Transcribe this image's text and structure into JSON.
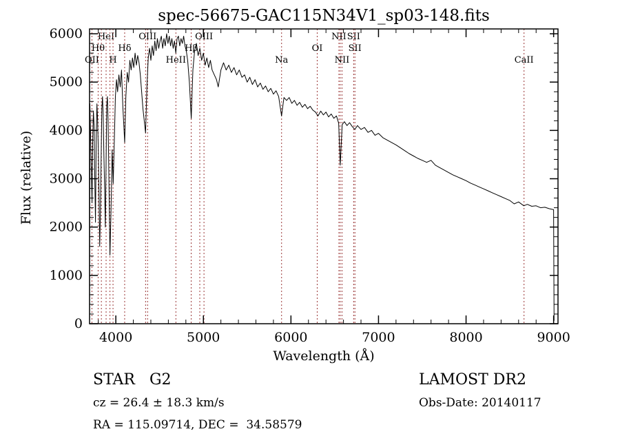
{
  "title": "spec-56675-GAC115N34V1_sp03-148.fits",
  "chart_data": {
    "type": "line",
    "xlabel": "Wavelength (Å)",
    "ylabel": "Flux (relative)",
    "xlim": [
      3700,
      9050
    ],
    "ylim": [
      0,
      6100
    ],
    "xticks": [
      4000,
      5000,
      6000,
      7000,
      8000,
      9000
    ],
    "yticks": [
      0,
      1000,
      2000,
      3000,
      4000,
      5000,
      6000
    ],
    "x_minor_step": 200,
    "y_minor_step": 200,
    "grid": false,
    "legend": "none",
    "line_color": "#000000",
    "marker_color": "#993333",
    "line_markers": [
      {
        "label": "OII",
        "wavelength": 3727,
        "row": 3
      },
      {
        "label": "Hθ",
        "wavelength": 3798,
        "row": 2
      },
      {
        "label": "",
        "wavelength": 3835,
        "row": 0
      },
      {
        "label": "HeI",
        "wavelength": 3889,
        "row": 1
      },
      {
        "label": "",
        "wavelength": 3933,
        "row": 0
      },
      {
        "label": "H",
        "wavelength": 3968,
        "row": 3
      },
      {
        "label": "Hδ",
        "wavelength": 4101,
        "row": 2
      },
      {
        "label": "",
        "wavelength": 4340,
        "row": 0
      },
      {
        "label": "OIII",
        "wavelength": 4363,
        "row": 1
      },
      {
        "label": "HeII",
        "wavelength": 4686,
        "row": 3
      },
      {
        "label": "Hβ",
        "wavelength": 4861,
        "row": 2
      },
      {
        "label": "",
        "wavelength": 4959,
        "row": 0
      },
      {
        "label": "OIII",
        "wavelength": 5007,
        "row": 1
      },
      {
        "label": "Na",
        "wavelength": 5893,
        "row": 3
      },
      {
        "label": "OI",
        "wavelength": 6300,
        "row": 2
      },
      {
        "label": "NII",
        "wavelength": 6548,
        "row": 1
      },
      {
        "label": "",
        "wavelength": 6563,
        "row": 0
      },
      {
        "label": "NII",
        "wavelength": 6583,
        "row": 3
      },
      {
        "label": "SII",
        "wavelength": 6716,
        "row": 1
      },
      {
        "label": "SII",
        "wavelength": 6731,
        "row": 2
      },
      {
        "label": "CaII",
        "wavelength": 8662,
        "row": 3
      }
    ],
    "series": [
      {
        "name": "spectrum",
        "points": [
          [
            3700,
            80
          ],
          [
            3704,
            4550
          ],
          [
            3712,
            3900
          ],
          [
            3720,
            3200
          ],
          [
            3728,
            2500
          ],
          [
            3736,
            3800
          ],
          [
            3744,
            4400
          ],
          [
            3752,
            4100
          ],
          [
            3760,
            3000
          ],
          [
            3768,
            2100
          ],
          [
            3776,
            3900
          ],
          [
            3784,
            4550
          ],
          [
            3792,
            4200
          ],
          [
            3800,
            3600
          ],
          [
            3808,
            2700
          ],
          [
            3816,
            1600
          ],
          [
            3824,
            2300
          ],
          [
            3832,
            3400
          ],
          [
            3840,
            4450
          ],
          [
            3848,
            4700
          ],
          [
            3856,
            4300
          ],
          [
            3864,
            3500
          ],
          [
            3872,
            2800
          ],
          [
            3880,
            2000
          ],
          [
            3888,
            3200
          ],
          [
            3896,
            4500
          ],
          [
            3904,
            4700
          ],
          [
            3912,
            4200
          ],
          [
            3920,
            3100
          ],
          [
            3933,
            1420
          ],
          [
            3945,
            2300
          ],
          [
            3958,
            3600
          ],
          [
            3970,
            2900
          ],
          [
            3982,
            3700
          ],
          [
            3995,
            4700
          ],
          [
            4008,
            5050
          ],
          [
            4020,
            4800
          ],
          [
            4035,
            5150
          ],
          [
            4050,
            4900
          ],
          [
            4065,
            5250
          ],
          [
            4080,
            4500
          ],
          [
            4101,
            3750
          ],
          [
            4115,
            4700
          ],
          [
            4130,
            5200
          ],
          [
            4145,
            5000
          ],
          [
            4160,
            5450
          ],
          [
            4175,
            5250
          ],
          [
            4190,
            5500
          ],
          [
            4205,
            5300
          ],
          [
            4220,
            5600
          ],
          [
            4235,
            5350
          ],
          [
            4250,
            5550
          ],
          [
            4265,
            5400
          ],
          [
            4280,
            5150
          ],
          [
            4295,
            4800
          ],
          [
            4310,
            4450
          ],
          [
            4325,
            4200
          ],
          [
            4340,
            3950
          ],
          [
            4355,
            4900
          ],
          [
            4370,
            5500
          ],
          [
            4385,
            5700
          ],
          [
            4400,
            5450
          ],
          [
            4415,
            5750
          ],
          [
            4430,
            5550
          ],
          [
            4445,
            5850
          ],
          [
            4460,
            5650
          ],
          [
            4475,
            5900
          ],
          [
            4490,
            5700
          ],
          [
            4505,
            5850
          ],
          [
            4520,
            5950
          ],
          [
            4535,
            5700
          ],
          [
            4550,
            5900
          ],
          [
            4565,
            5750
          ],
          [
            4580,
            6000
          ],
          [
            4595,
            5800
          ],
          [
            4610,
            5950
          ],
          [
            4625,
            5750
          ],
          [
            4640,
            5900
          ],
          [
            4655,
            5700
          ],
          [
            4670,
            5850
          ],
          [
            4685,
            5600
          ],
          [
            4700,
            5900
          ],
          [
            4715,
            5950
          ],
          [
            4730,
            5750
          ],
          [
            4745,
            5900
          ],
          [
            4760,
            5800
          ],
          [
            4775,
            5950
          ],
          [
            4790,
            5750
          ],
          [
            4805,
            5650
          ],
          [
            4820,
            5450
          ],
          [
            4840,
            5000
          ],
          [
            4861,
            4250
          ],
          [
            4880,
            5250
          ],
          [
            4900,
            5650
          ],
          [
            4920,
            5800
          ],
          [
            4940,
            5550
          ],
          [
            4960,
            5700
          ],
          [
            4980,
            5450
          ],
          [
            5000,
            5600
          ],
          [
            5020,
            5350
          ],
          [
            5040,
            5500
          ],
          [
            5060,
            5300
          ],
          [
            5080,
            5450
          ],
          [
            5100,
            5250
          ],
          [
            5125,
            5150
          ],
          [
            5150,
            5050
          ],
          [
            5170,
            4900
          ],
          [
            5200,
            5250
          ],
          [
            5230,
            5400
          ],
          [
            5260,
            5250
          ],
          [
            5290,
            5350
          ],
          [
            5320,
            5200
          ],
          [
            5350,
            5300
          ],
          [
            5380,
            5150
          ],
          [
            5410,
            5250
          ],
          [
            5440,
            5100
          ],
          [
            5470,
            5150
          ],
          [
            5500,
            5000
          ],
          [
            5530,
            5100
          ],
          [
            5560,
            4950
          ],
          [
            5590,
            5050
          ],
          [
            5620,
            4900
          ],
          [
            5650,
            4980
          ],
          [
            5680,
            4850
          ],
          [
            5710,
            4920
          ],
          [
            5740,
            4800
          ],
          [
            5770,
            4870
          ],
          [
            5800,
            4750
          ],
          [
            5830,
            4820
          ],
          [
            5860,
            4700
          ],
          [
            5893,
            4300
          ],
          [
            5920,
            4680
          ],
          [
            5950,
            4620
          ],
          [
            5980,
            4680
          ],
          [
            6010,
            4560
          ],
          [
            6040,
            4620
          ],
          [
            6070,
            4520
          ],
          [
            6100,
            4580
          ],
          [
            6130,
            4480
          ],
          [
            6160,
            4540
          ],
          [
            6190,
            4450
          ],
          [
            6220,
            4500
          ],
          [
            6250,
            4420
          ],
          [
            6280,
            4380
          ],
          [
            6310,
            4300
          ],
          [
            6340,
            4400
          ],
          [
            6370,
            4320
          ],
          [
            6400,
            4380
          ],
          [
            6430,
            4280
          ],
          [
            6460,
            4340
          ],
          [
            6490,
            4250
          ],
          [
            6520,
            4300
          ],
          [
            6545,
            4150
          ],
          [
            6563,
            3280
          ],
          [
            6585,
            4120
          ],
          [
            6610,
            4180
          ],
          [
            6640,
            4100
          ],
          [
            6670,
            4160
          ],
          [
            6700,
            4080
          ],
          [
            6730,
            4020
          ],
          [
            6760,
            4100
          ],
          [
            6800,
            4020
          ],
          [
            6840,
            4060
          ],
          [
            6880,
            3960
          ],
          [
            6920,
            4000
          ],
          [
            6960,
            3900
          ],
          [
            7000,
            3940
          ],
          [
            7050,
            3850
          ],
          [
            7100,
            3800
          ],
          [
            7150,
            3750
          ],
          [
            7200,
            3700
          ],
          [
            7250,
            3640
          ],
          [
            7300,
            3580
          ],
          [
            7350,
            3520
          ],
          [
            7400,
            3470
          ],
          [
            7450,
            3420
          ],
          [
            7500,
            3380
          ],
          [
            7550,
            3340
          ],
          [
            7600,
            3380
          ],
          [
            7650,
            3280
          ],
          [
            7700,
            3230
          ],
          [
            7750,
            3180
          ],
          [
            7800,
            3130
          ],
          [
            7850,
            3080
          ],
          [
            7900,
            3040
          ],
          [
            7950,
            3000
          ],
          [
            8000,
            2960
          ],
          [
            8050,
            2910
          ],
          [
            8100,
            2870
          ],
          [
            8150,
            2830
          ],
          [
            8200,
            2790
          ],
          [
            8250,
            2750
          ],
          [
            8300,
            2710
          ],
          [
            8350,
            2670
          ],
          [
            8400,
            2630
          ],
          [
            8450,
            2590
          ],
          [
            8500,
            2550
          ],
          [
            8550,
            2480
          ],
          [
            8600,
            2520
          ],
          [
            8660,
            2440
          ],
          [
            8700,
            2470
          ],
          [
            8750,
            2430
          ],
          [
            8800,
            2440
          ],
          [
            8850,
            2400
          ],
          [
            8900,
            2410
          ],
          [
            8950,
            2380
          ],
          [
            9000,
            2360
          ],
          [
            9005,
            60
          ]
        ]
      }
    ]
  },
  "footer": {
    "class_label": "STAR   G2",
    "survey": "LAMOST DR2",
    "cz": "cz = 26.4 ± 18.3 km/s",
    "obs_date": "Obs-Date: 20140117",
    "radec": "RA = 115.09714, DEC =  34.58579"
  }
}
